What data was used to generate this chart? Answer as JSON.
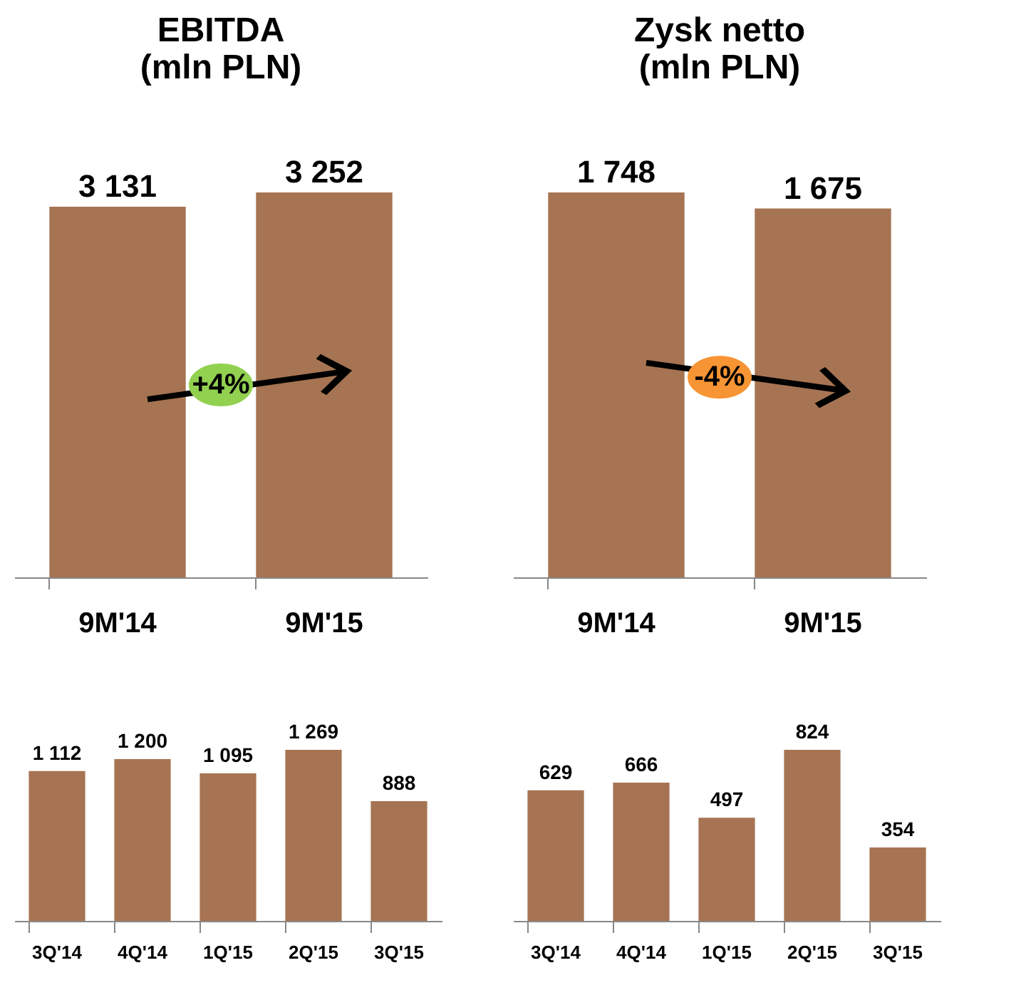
{
  "chart_data": [
    {
      "type": "bar",
      "title": "EBITDA\n(mln PLN)",
      "categories": [
        "9M'14",
        "9M'15"
      ],
      "values": [
        3131,
        3252
      ],
      "color": "#a67453",
      "data_labels": true,
      "annotations": [
        "+4%"
      ]
    },
    {
      "type": "bar",
      "title": "Zysk netto\n(mln PLN)",
      "categories": [
        "9M'14",
        "9M'15"
      ],
      "values": [
        1748,
        1675
      ],
      "color": "#a67453",
      "data_labels": true,
      "annotations": [
        "-4%"
      ]
    },
    {
      "type": "bar",
      "categories": [
        "3Q'14",
        "4Q'14",
        "1Q'15",
        "2Q'15",
        "3Q'15"
      ],
      "values": [
        1112,
        1200,
        1095,
        1269,
        888
      ],
      "color": "#a67453",
      "data_labels": true
    },
    {
      "type": "bar",
      "categories": [
        "3Q'14",
        "4Q'14",
        "1Q'15",
        "2Q'15",
        "3Q'15"
      ],
      "values": [
        629,
        666,
        497,
        824,
        354
      ],
      "color": "#a67453",
      "data_labels": true
    }
  ]
}
